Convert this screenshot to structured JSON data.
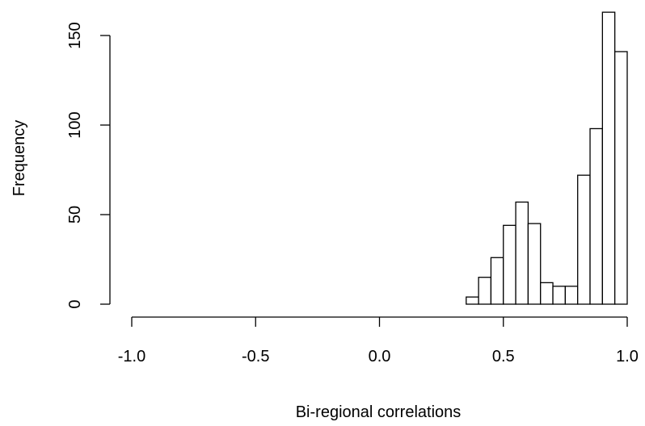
{
  "chart_data": {
    "type": "bar",
    "title": "",
    "xlabel": "Bi-regional correlations",
    "ylabel": "Frequency",
    "xlim": [
      -1.0,
      1.0
    ],
    "ylim": [
      0,
      165
    ],
    "x_ticks": [
      "-1.0",
      "-0.5",
      "0.0",
      "0.5",
      "1.0"
    ],
    "x_tick_values": [
      -1.0,
      -0.5,
      0.0,
      0.5,
      1.0
    ],
    "y_ticks": [
      "0",
      "50",
      "100",
      "150"
    ],
    "y_tick_values": [
      0,
      50,
      100,
      150
    ],
    "bin_width": 0.05,
    "bin_edges": [
      0.35,
      0.4,
      0.45,
      0.5,
      0.55,
      0.6,
      0.65,
      0.7,
      0.75,
      0.8,
      0.85,
      0.9,
      0.95,
      1.0
    ],
    "values": [
      4,
      15,
      26,
      44,
      57,
      45,
      12,
      10,
      10,
      72,
      98,
      163,
      141
    ],
    "grid": false,
    "legend": "none"
  }
}
